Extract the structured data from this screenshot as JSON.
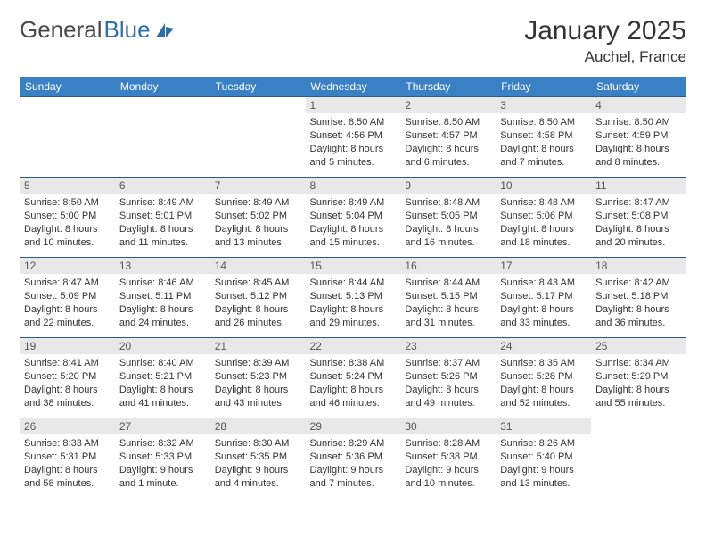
{
  "logo": {
    "part1": "General",
    "part2": "Blue"
  },
  "header": {
    "month": "January 2025",
    "location": "Auchel, France"
  },
  "colors": {
    "header_bg": "#3a80c4",
    "header_fg": "#ffffff",
    "row_border": "#2a5a8a",
    "daynum_bg": "#e8e8e8",
    "logo_blue": "#2f6fa8"
  },
  "daynames": [
    "Sunday",
    "Monday",
    "Tuesday",
    "Wednesday",
    "Thursday",
    "Friday",
    "Saturday"
  ],
  "weeks": [
    [
      null,
      null,
      null,
      {
        "n": "1",
        "sr": "8:50 AM",
        "ss": "4:56 PM",
        "dl": "8 hours and 5 minutes."
      },
      {
        "n": "2",
        "sr": "8:50 AM",
        "ss": "4:57 PM",
        "dl": "8 hours and 6 minutes."
      },
      {
        "n": "3",
        "sr": "8:50 AM",
        "ss": "4:58 PM",
        "dl": "8 hours and 7 minutes."
      },
      {
        "n": "4",
        "sr": "8:50 AM",
        "ss": "4:59 PM",
        "dl": "8 hours and 8 minutes."
      }
    ],
    [
      {
        "n": "5",
        "sr": "8:50 AM",
        "ss": "5:00 PM",
        "dl": "8 hours and 10 minutes."
      },
      {
        "n": "6",
        "sr": "8:49 AM",
        "ss": "5:01 PM",
        "dl": "8 hours and 11 minutes."
      },
      {
        "n": "7",
        "sr": "8:49 AM",
        "ss": "5:02 PM",
        "dl": "8 hours and 13 minutes."
      },
      {
        "n": "8",
        "sr": "8:49 AM",
        "ss": "5:04 PM",
        "dl": "8 hours and 15 minutes."
      },
      {
        "n": "9",
        "sr": "8:48 AM",
        "ss": "5:05 PM",
        "dl": "8 hours and 16 minutes."
      },
      {
        "n": "10",
        "sr": "8:48 AM",
        "ss": "5:06 PM",
        "dl": "8 hours and 18 minutes."
      },
      {
        "n": "11",
        "sr": "8:47 AM",
        "ss": "5:08 PM",
        "dl": "8 hours and 20 minutes."
      }
    ],
    [
      {
        "n": "12",
        "sr": "8:47 AM",
        "ss": "5:09 PM",
        "dl": "8 hours and 22 minutes."
      },
      {
        "n": "13",
        "sr": "8:46 AM",
        "ss": "5:11 PM",
        "dl": "8 hours and 24 minutes."
      },
      {
        "n": "14",
        "sr": "8:45 AM",
        "ss": "5:12 PM",
        "dl": "8 hours and 26 minutes."
      },
      {
        "n": "15",
        "sr": "8:44 AM",
        "ss": "5:13 PM",
        "dl": "8 hours and 29 minutes."
      },
      {
        "n": "16",
        "sr": "8:44 AM",
        "ss": "5:15 PM",
        "dl": "8 hours and 31 minutes."
      },
      {
        "n": "17",
        "sr": "8:43 AM",
        "ss": "5:17 PM",
        "dl": "8 hours and 33 minutes."
      },
      {
        "n": "18",
        "sr": "8:42 AM",
        "ss": "5:18 PM",
        "dl": "8 hours and 36 minutes."
      }
    ],
    [
      {
        "n": "19",
        "sr": "8:41 AM",
        "ss": "5:20 PM",
        "dl": "8 hours and 38 minutes."
      },
      {
        "n": "20",
        "sr": "8:40 AM",
        "ss": "5:21 PM",
        "dl": "8 hours and 41 minutes."
      },
      {
        "n": "21",
        "sr": "8:39 AM",
        "ss": "5:23 PM",
        "dl": "8 hours and 43 minutes."
      },
      {
        "n": "22",
        "sr": "8:38 AM",
        "ss": "5:24 PM",
        "dl": "8 hours and 46 minutes."
      },
      {
        "n": "23",
        "sr": "8:37 AM",
        "ss": "5:26 PM",
        "dl": "8 hours and 49 minutes."
      },
      {
        "n": "24",
        "sr": "8:35 AM",
        "ss": "5:28 PM",
        "dl": "8 hours and 52 minutes."
      },
      {
        "n": "25",
        "sr": "8:34 AM",
        "ss": "5:29 PM",
        "dl": "8 hours and 55 minutes."
      }
    ],
    [
      {
        "n": "26",
        "sr": "8:33 AM",
        "ss": "5:31 PM",
        "dl": "8 hours and 58 minutes."
      },
      {
        "n": "27",
        "sr": "8:32 AM",
        "ss": "5:33 PM",
        "dl": "9 hours and 1 minute."
      },
      {
        "n": "28",
        "sr": "8:30 AM",
        "ss": "5:35 PM",
        "dl": "9 hours and 4 minutes."
      },
      {
        "n": "29",
        "sr": "8:29 AM",
        "ss": "5:36 PM",
        "dl": "9 hours and 7 minutes."
      },
      {
        "n": "30",
        "sr": "8:28 AM",
        "ss": "5:38 PM",
        "dl": "9 hours and 10 minutes."
      },
      {
        "n": "31",
        "sr": "8:26 AM",
        "ss": "5:40 PM",
        "dl": "9 hours and 13 minutes."
      },
      null
    ]
  ],
  "labels": {
    "sunrise": "Sunrise: ",
    "sunset": "Sunset: ",
    "daylight": "Daylight: "
  }
}
